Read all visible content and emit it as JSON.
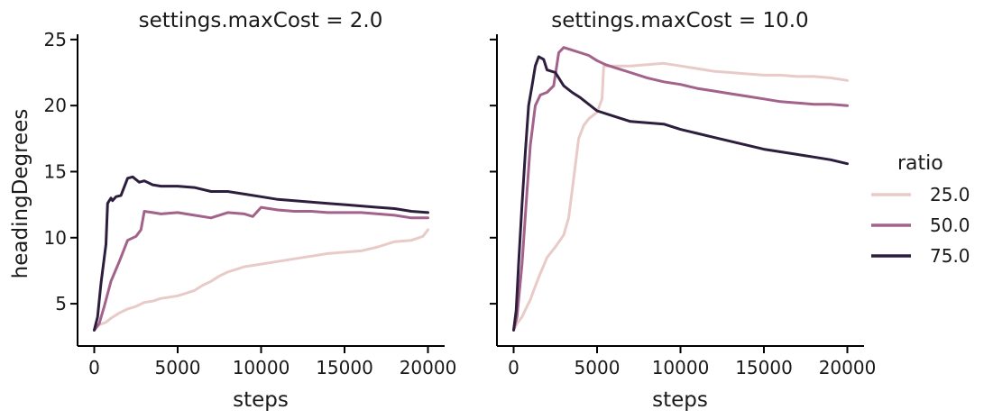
{
  "chart_data": [
    {
      "type": "line",
      "title": "settings.maxCost = 2.0",
      "xlabel": "steps",
      "ylabel": "headingDegrees",
      "xlim": [
        -1000,
        21000
      ],
      "ylim": [
        1.8,
        25.4
      ],
      "xticks": [
        0,
        5000,
        10000,
        15000,
        20000
      ],
      "yticks": [
        5,
        10,
        15,
        20,
        25
      ],
      "series": [
        {
          "name": "25.0",
          "color": "#e8cbc8",
          "x": [
            0,
            300,
            700,
            1000,
            1500,
            2000,
            2500,
            3000,
            3500,
            4000,
            4500,
            5000,
            5500,
            6000,
            6500,
            7000,
            7500,
            8000,
            9000,
            10000,
            11000,
            12000,
            13000,
            14000,
            15000,
            16000,
            17000,
            18000,
            19000,
            19700,
            20000
          ],
          "y": [
            3.0,
            3.4,
            3.6,
            3.9,
            4.3,
            4.6,
            4.8,
            5.1,
            5.2,
            5.4,
            5.5,
            5.6,
            5.8,
            6.0,
            6.4,
            6.7,
            7.1,
            7.4,
            7.8,
            8.0,
            8.2,
            8.4,
            8.6,
            8.8,
            8.9,
            9.0,
            9.3,
            9.7,
            9.8,
            10.1,
            10.6
          ]
        },
        {
          "name": "50.0",
          "color": "#a3628a",
          "x": [
            0,
            300,
            600,
            1000,
            1500,
            2000,
            2500,
            2800,
            3000,
            3500,
            4000,
            5000,
            6000,
            7000,
            8000,
            9000,
            9500,
            10000,
            11000,
            12000,
            13000,
            14000,
            15000,
            16000,
            17000,
            18000,
            19000,
            20000
          ],
          "y": [
            3.0,
            3.5,
            4.8,
            6.7,
            8.2,
            9.8,
            10.1,
            10.6,
            12.0,
            11.9,
            11.8,
            11.9,
            11.7,
            11.5,
            11.9,
            11.8,
            11.6,
            12.3,
            12.1,
            12.0,
            12.0,
            11.9,
            11.9,
            11.9,
            11.8,
            11.7,
            11.5,
            11.5
          ]
        },
        {
          "name": "75.0",
          "color": "#2d1e3e",
          "x": [
            0,
            200,
            400,
            700,
            800,
            1000,
            1100,
            1300,
            1600,
            2000,
            2300,
            2700,
            3000,
            3500,
            4000,
            5000,
            6000,
            7000,
            8000,
            9000,
            10000,
            11000,
            12000,
            13000,
            14000,
            15000,
            16000,
            17000,
            18000,
            19000,
            20000
          ],
          "y": [
            3.0,
            4.0,
            6.5,
            9.5,
            12.6,
            13.0,
            12.8,
            13.1,
            13.2,
            14.5,
            14.6,
            14.2,
            14.3,
            14.0,
            13.9,
            13.9,
            13.8,
            13.5,
            13.5,
            13.3,
            13.1,
            12.9,
            12.8,
            12.7,
            12.6,
            12.5,
            12.4,
            12.3,
            12.2,
            12.0,
            11.9
          ]
        }
      ]
    },
    {
      "type": "line",
      "title": "settings.maxCost = 10.0",
      "xlabel": "steps",
      "ylabel": "",
      "xlim": [
        -1000,
        21000
      ],
      "ylim": [
        1.8,
        25.4
      ],
      "xticks": [
        0,
        5000,
        10000,
        15000,
        20000
      ],
      "yticks": [
        5,
        10,
        15,
        20,
        25
      ],
      "series": [
        {
          "name": "25.0",
          "color": "#e8cbc8",
          "x": [
            0,
            200,
            500,
            800,
            1000,
            1200,
            1500,
            2000,
            2500,
            3000,
            3300,
            3600,
            3900,
            4200,
            4500,
            5000,
            5300,
            5400,
            6000,
            7000,
            8000,
            9000,
            10000,
            11000,
            12000,
            13000,
            14000,
            15000,
            16000,
            17000,
            18000,
            19000,
            20000
          ],
          "y": [
            3.0,
            3.5,
            4.0,
            4.8,
            5.3,
            6.0,
            7.0,
            8.5,
            9.3,
            10.2,
            11.5,
            14.5,
            17.5,
            18.5,
            19.0,
            19.5,
            20.5,
            23.0,
            23.0,
            23.0,
            23.1,
            23.2,
            23.0,
            22.8,
            22.6,
            22.5,
            22.4,
            22.3,
            22.3,
            22.2,
            22.2,
            22.1,
            21.9
          ]
        },
        {
          "name": "50.0",
          "color": "#a3628a",
          "x": [
            0,
            200,
            500,
            800,
            1000,
            1300,
            1600,
            2000,
            2400,
            2700,
            3000,
            3500,
            4000,
            4500,
            5000,
            5500,
            6000,
            7000,
            8000,
            9000,
            10000,
            11000,
            12000,
            13000,
            14000,
            15000,
            16000,
            17000,
            18000,
            19000,
            20000
          ],
          "y": [
            3.0,
            4.0,
            8.0,
            13.5,
            17.0,
            20.0,
            20.8,
            21.0,
            21.5,
            24.0,
            24.4,
            24.2,
            24.0,
            23.8,
            23.4,
            23.1,
            22.9,
            22.5,
            22.1,
            21.8,
            21.6,
            21.3,
            21.1,
            20.9,
            20.7,
            20.5,
            20.3,
            20.2,
            20.1,
            20.1,
            20.0
          ]
        },
        {
          "name": "75.0",
          "color": "#2d1e3e",
          "x": [
            0,
            150,
            300,
            500,
            700,
            900,
            1100,
            1300,
            1500,
            1800,
            2000,
            2500,
            3000,
            3500,
            4000,
            5000,
            6000,
            7000,
            8000,
            9000,
            10000,
            11000,
            12000,
            13000,
            14000,
            15000,
            16000,
            17000,
            18000,
            19000,
            20000
          ],
          "y": [
            3.0,
            4.5,
            8.0,
            12.5,
            16.5,
            20.0,
            21.5,
            23.0,
            23.7,
            23.5,
            22.7,
            22.5,
            21.5,
            21.0,
            20.6,
            19.6,
            19.2,
            18.8,
            18.7,
            18.6,
            18.2,
            17.9,
            17.6,
            17.3,
            17.0,
            16.7,
            16.5,
            16.3,
            16.1,
            15.9,
            15.6
          ]
        }
      ]
    }
  ],
  "legend": {
    "title": "ratio",
    "entries": [
      {
        "label": "25.0",
        "color": "#e8cbc8"
      },
      {
        "label": "50.0",
        "color": "#a3628a"
      },
      {
        "label": "75.0",
        "color": "#2d1e3e"
      }
    ]
  }
}
